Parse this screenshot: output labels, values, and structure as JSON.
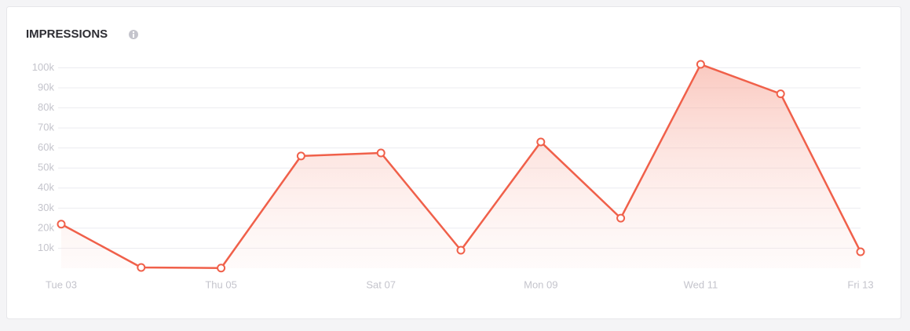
{
  "chart_data": {
    "type": "line",
    "title": "IMPRESSIONS",
    "categories": [
      "Tue 03",
      null,
      "Thu 05",
      null,
      "Sat 07",
      null,
      "Mon 09",
      null,
      "Wed 11",
      null,
      "Fri 13"
    ],
    "values": [
      22000,
      400,
      100,
      56000,
      57500,
      9000,
      63000,
      25000,
      101700,
      87000,
      8200
    ],
    "color": "#f0604a",
    "ylim": [
      0,
      105000
    ],
    "yticks": [
      {
        "value": 10000,
        "label": "10k"
      },
      {
        "value": 20000,
        "label": "20k"
      },
      {
        "value": 30000,
        "label": "30k"
      },
      {
        "value": 40000,
        "label": "40k"
      },
      {
        "value": 50000,
        "label": "50k"
      },
      {
        "value": 60000,
        "label": "60k"
      },
      {
        "value": 70000,
        "label": "70k"
      },
      {
        "value": 80000,
        "label": "80k"
      },
      {
        "value": 90000,
        "label": "90k"
      },
      {
        "value": 100000,
        "label": "100k"
      }
    ],
    "grid": true
  }
}
